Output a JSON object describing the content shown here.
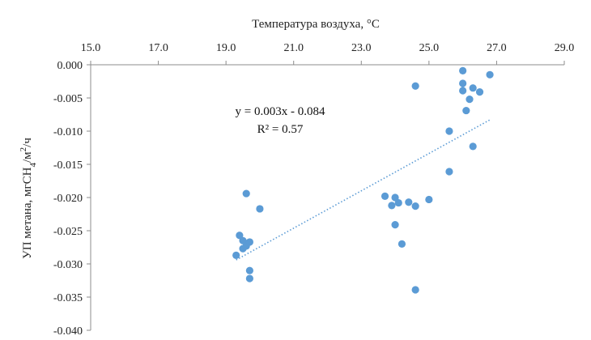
{
  "chart_data": {
    "type": "scatter",
    "xlabel": "Температура воздуха, °C",
    "ylabel_parts": [
      "УП метана, мгCH",
      "4",
      "/м",
      "2",
      "/ч"
    ],
    "xlim": [
      15.0,
      29.0
    ],
    "ylim": [
      -0.04,
      0.0
    ],
    "x_ticks": [
      "15.0",
      "17.0",
      "19.0",
      "21.0",
      "23.0",
      "25.0",
      "27.0",
      "29.0"
    ],
    "y_ticks": [
      "0.000",
      "-0.005",
      "-0.010",
      "-0.015",
      "-0.020",
      "-0.025",
      "-0.030",
      "-0.035",
      "-0.040"
    ],
    "x_axis_position": "top",
    "grid": false,
    "marker_color": "#5b9bd5",
    "trendline": {
      "equation": "y = 0.003x - 0.084",
      "r_squared": "R² = 0.57",
      "x_range": [
        19.3,
        26.8
      ],
      "y_range": [
        -0.0294,
        -0.0083
      ],
      "style": "dotted",
      "color": "#5b9bd5"
    },
    "points": [
      {
        "x": 19.3,
        "y": -0.0287
      },
      {
        "x": 19.4,
        "y": -0.0257
      },
      {
        "x": 19.5,
        "y": -0.0265
      },
      {
        "x": 19.5,
        "y": -0.0277
      },
      {
        "x": 19.6,
        "y": -0.0273
      },
      {
        "x": 19.6,
        "y": -0.0194
      },
      {
        "x": 19.7,
        "y": -0.0267
      },
      {
        "x": 19.7,
        "y": -0.031
      },
      {
        "x": 19.7,
        "y": -0.0322
      },
      {
        "x": 20.0,
        "y": -0.0217
      },
      {
        "x": 23.7,
        "y": -0.0198
      },
      {
        "x": 23.9,
        "y": -0.0212
      },
      {
        "x": 24.0,
        "y": -0.02
      },
      {
        "x": 24.0,
        "y": -0.0241
      },
      {
        "x": 24.1,
        "y": -0.0208
      },
      {
        "x": 24.2,
        "y": -0.027
      },
      {
        "x": 24.4,
        "y": -0.0207
      },
      {
        "x": 24.6,
        "y": -0.0213
      },
      {
        "x": 24.6,
        "y": -0.0032
      },
      {
        "x": 24.6,
        "y": -0.0339
      },
      {
        "x": 25.0,
        "y": -0.0203
      },
      {
        "x": 25.6,
        "y": -0.01
      },
      {
        "x": 25.6,
        "y": -0.0161
      },
      {
        "x": 26.0,
        "y": -0.0009
      },
      {
        "x": 26.0,
        "y": -0.0028
      },
      {
        "x": 26.0,
        "y": -0.0039
      },
      {
        "x": 26.1,
        "y": -0.0069
      },
      {
        "x": 26.2,
        "y": -0.0052
      },
      {
        "x": 26.3,
        "y": -0.0035
      },
      {
        "x": 26.3,
        "y": -0.0123
      },
      {
        "x": 26.5,
        "y": -0.0041
      },
      {
        "x": 26.8,
        "y": -0.0015
      }
    ]
  }
}
